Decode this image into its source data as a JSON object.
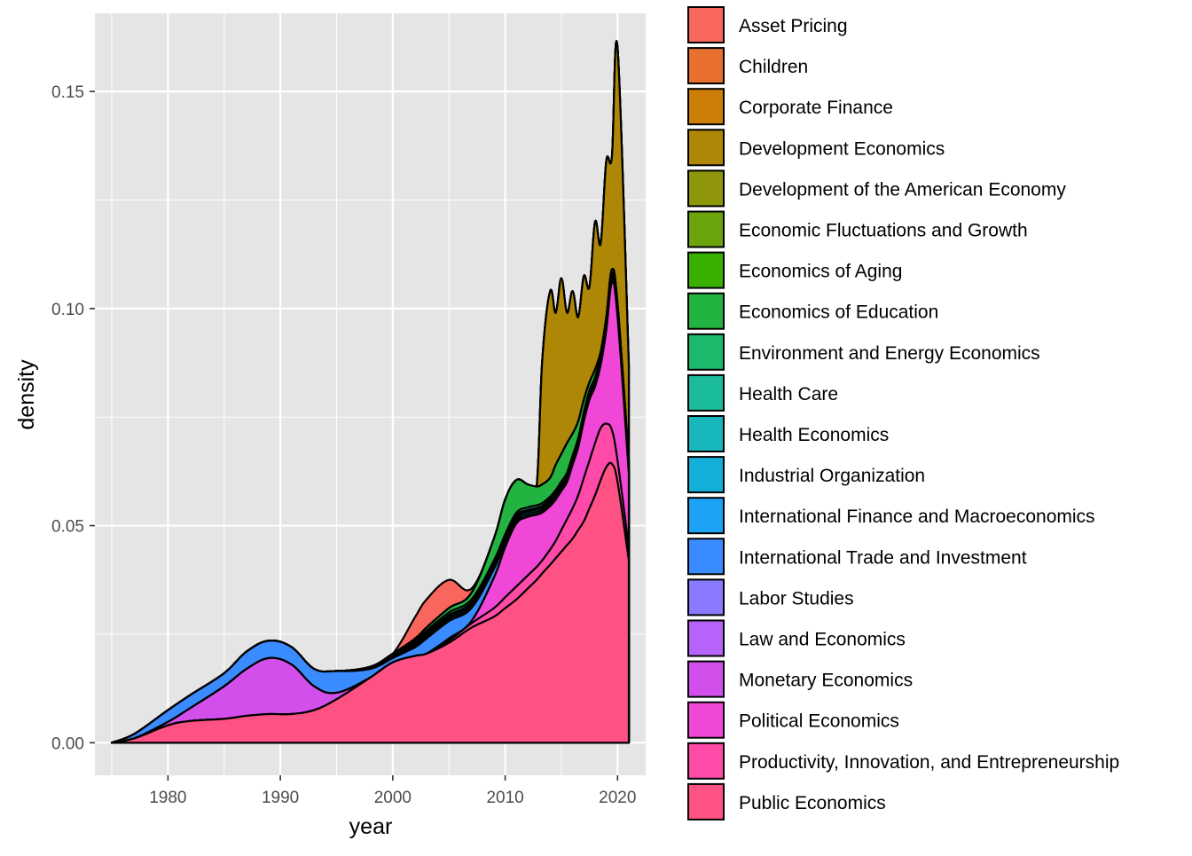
{
  "chart_data": {
    "type": "area",
    "stacked": true,
    "xlabel": "year",
    "ylabel": "density",
    "xlim": [
      1973.5,
      2022.5
    ],
    "ylim": [
      -0.0075,
      0.168
    ],
    "x_ticks": [
      1980,
      1990,
      2000,
      2010,
      2020
    ],
    "y_ticks": [
      0.0,
      0.05,
      0.1,
      0.15
    ],
    "x_tick_labels": [
      "1980",
      "1990",
      "2000",
      "2010",
      "2020"
    ],
    "y_tick_labels": [
      "0.00",
      "0.05",
      "0.10",
      "0.15"
    ],
    "grid": true,
    "legend_position": "right",
    "x": [
      1975,
      1977,
      1980,
      1982,
      1985,
      1987,
      1989,
      1991,
      1993,
      1995,
      1998,
      2000,
      2002,
      2003,
      2005,
      2007,
      2009,
      2010,
      2011,
      2012,
      2012.8,
      2013.3,
      2014,
      2014.5,
      2015,
      2015.5,
      2016,
      2016.5,
      2017,
      2017.5,
      2018,
      2018.5,
      2019,
      2019.5,
      2020,
      2021
    ],
    "series": [
      {
        "name": "Public Economics",
        "color": "#FF5284",
        "top": [
          0.0,
          0.001,
          0.004,
          0.005,
          0.0055,
          0.0062,
          0.0066,
          0.0066,
          0.0075,
          0.01,
          0.015,
          0.0185,
          0.02,
          0.0205,
          0.023,
          0.0265,
          0.029,
          0.031,
          0.033,
          0.0355,
          0.0375,
          0.039,
          0.041,
          0.0425,
          0.044,
          0.0455,
          0.047,
          0.049,
          0.051,
          0.054,
          0.057,
          0.0605,
          0.0635,
          0.0642,
          0.06,
          0.042
        ]
      },
      {
        "name": "Productivity, Innovation, and Entrepreneurship",
        "color": "#FF4AA8",
        "top": [
          0.0,
          0.001,
          0.004,
          0.005,
          0.0055,
          0.0062,
          0.0066,
          0.0066,
          0.0075,
          0.01,
          0.015,
          0.0185,
          0.02,
          0.0205,
          0.0235,
          0.0275,
          0.031,
          0.0335,
          0.036,
          0.0385,
          0.0405,
          0.042,
          0.0445,
          0.0465,
          0.049,
          0.0515,
          0.054,
          0.057,
          0.061,
          0.065,
          0.069,
          0.0725,
          0.0735,
          0.072,
          0.065,
          0.045
        ]
      },
      {
        "name": "Political Economics",
        "color": "#F147D7",
        "top": [
          0.0,
          0.001,
          0.004,
          0.005,
          0.0055,
          0.0062,
          0.0066,
          0.0066,
          0.0075,
          0.01,
          0.015,
          0.0185,
          0.02,
          0.0205,
          0.024,
          0.028,
          0.038,
          0.045,
          0.0505,
          0.052,
          0.0525,
          0.053,
          0.0545,
          0.056,
          0.058,
          0.06,
          0.064,
          0.068,
          0.074,
          0.079,
          0.082,
          0.087,
          0.095,
          0.106,
          0.098,
          0.062
        ]
      },
      {
        "name": "Monetary Economics",
        "color": "#D34FEC",
        "top": [
          0.0,
          0.001,
          0.0048,
          0.008,
          0.013,
          0.017,
          0.0195,
          0.018,
          0.013,
          0.0115,
          0.015,
          0.0185,
          0.02,
          0.0205,
          0.024,
          0.028,
          0.038,
          0.045,
          0.0505,
          0.052,
          0.0525,
          0.053,
          0.0545,
          0.056,
          0.058,
          0.06,
          0.064,
          0.068,
          0.074,
          0.079,
          0.082,
          0.087,
          0.095,
          0.106,
          0.098,
          0.062
        ]
      },
      {
        "name": "Law and Economics",
        "color": "#B664F9",
        "top": [
          0.0,
          0.001,
          0.0048,
          0.008,
          0.013,
          0.017,
          0.0195,
          0.018,
          0.013,
          0.0115,
          0.015,
          0.0185,
          0.02,
          0.0205,
          0.024,
          0.028,
          0.038,
          0.045,
          0.0505,
          0.052,
          0.0525,
          0.053,
          0.0545,
          0.056,
          0.058,
          0.06,
          0.064,
          0.068,
          0.074,
          0.079,
          0.082,
          0.087,
          0.095,
          0.106,
          0.098,
          0.062
        ]
      },
      {
        "name": "Labor Studies",
        "color": "#8A7AFF",
        "top": [
          0.0,
          0.001,
          0.0048,
          0.008,
          0.013,
          0.017,
          0.0195,
          0.018,
          0.013,
          0.0115,
          0.015,
          0.0185,
          0.02,
          0.0205,
          0.024,
          0.028,
          0.038,
          0.045,
          0.0505,
          0.052,
          0.0525,
          0.053,
          0.0545,
          0.056,
          0.058,
          0.06,
          0.064,
          0.068,
          0.074,
          0.079,
          0.082,
          0.087,
          0.095,
          0.106,
          0.098,
          0.062
        ]
      },
      {
        "name": "International Trade and Investment",
        "color": "#3A8BFF",
        "top": [
          0.0,
          0.002,
          0.0075,
          0.011,
          0.016,
          0.021,
          0.0235,
          0.022,
          0.017,
          0.0165,
          0.017,
          0.0195,
          0.022,
          0.024,
          0.028,
          0.031,
          0.04,
          0.046,
          0.051,
          0.0522,
          0.0527,
          0.0532,
          0.0547,
          0.0562,
          0.0582,
          0.0602,
          0.0642,
          0.0682,
          0.0742,
          0.0792,
          0.0822,
          0.0872,
          0.0952,
          0.1062,
          0.0982,
          0.0622
        ]
      },
      {
        "name": "International Finance and Macroeconomics",
        "color": "#1CA2F5",
        "top": [
          0.0,
          0.002,
          0.0075,
          0.011,
          0.016,
          0.021,
          0.0235,
          0.022,
          0.017,
          0.0165,
          0.017,
          0.0195,
          0.0225,
          0.0245,
          0.0285,
          0.0315,
          0.0405,
          0.0465,
          0.0515,
          0.0527,
          0.0532,
          0.0537,
          0.0552,
          0.0567,
          0.0587,
          0.0607,
          0.0647,
          0.0687,
          0.0747,
          0.0797,
          0.0827,
          0.0877,
          0.0957,
          0.1067,
          0.0987,
          0.0627
        ]
      },
      {
        "name": "Industrial Organization",
        "color": "#14AFD8",
        "top": [
          0.0,
          0.002,
          0.0075,
          0.011,
          0.016,
          0.021,
          0.0235,
          0.022,
          0.017,
          0.0165,
          0.017,
          0.0195,
          0.0228,
          0.025,
          0.029,
          0.032,
          0.041,
          0.047,
          0.052,
          0.0532,
          0.0537,
          0.0542,
          0.0557,
          0.0572,
          0.0592,
          0.0612,
          0.0652,
          0.0692,
          0.0752,
          0.0802,
          0.0832,
          0.0882,
          0.0962,
          0.1072,
          0.0992,
          0.0632
        ]
      },
      {
        "name": "Health Economics",
        "color": "#17B7BB",
        "top": [
          0.0,
          0.002,
          0.0075,
          0.011,
          0.016,
          0.021,
          0.0235,
          0.022,
          0.017,
          0.0165,
          0.017,
          0.0195,
          0.0228,
          0.025,
          0.029,
          0.032,
          0.041,
          0.047,
          0.052,
          0.0532,
          0.0537,
          0.0542,
          0.0557,
          0.0572,
          0.0592,
          0.0612,
          0.0652,
          0.0692,
          0.0752,
          0.0802,
          0.0832,
          0.0882,
          0.0962,
          0.1072,
          0.0992,
          0.0632
        ]
      },
      {
        "name": "Health Care",
        "color": "#1ABC9C",
        "top": [
          0.0,
          0.002,
          0.0075,
          0.011,
          0.016,
          0.021,
          0.0235,
          0.022,
          0.017,
          0.0165,
          0.017,
          0.0198,
          0.023,
          0.0253,
          0.0294,
          0.0324,
          0.0414,
          0.0474,
          0.0524,
          0.0536,
          0.0541,
          0.0546,
          0.0561,
          0.0576,
          0.0596,
          0.0616,
          0.0656,
          0.0696,
          0.0756,
          0.0806,
          0.0836,
          0.0886,
          0.0966,
          0.1076,
          0.0996,
          0.0636
        ]
      },
      {
        "name": "Environment and Energy Economics",
        "color": "#1AB96C",
        "top": [
          0.0,
          0.002,
          0.0075,
          0.011,
          0.016,
          0.021,
          0.0235,
          0.022,
          0.017,
          0.0165,
          0.0172,
          0.02,
          0.0235,
          0.0258,
          0.03,
          0.033,
          0.042,
          0.048,
          0.053,
          0.0542,
          0.0547,
          0.0552,
          0.0567,
          0.0582,
          0.0602,
          0.0622,
          0.0662,
          0.0702,
          0.0762,
          0.0812,
          0.0842,
          0.0892,
          0.0972,
          0.1082,
          0.1002,
          0.0642
        ]
      },
      {
        "name": "Economics of Education",
        "color": "#23B340",
        "top": [
          0.0,
          0.002,
          0.0075,
          0.011,
          0.016,
          0.021,
          0.0235,
          0.022,
          0.017,
          0.0165,
          0.0175,
          0.0205,
          0.024,
          0.0265,
          0.031,
          0.0345,
          0.047,
          0.056,
          0.0605,
          0.0595,
          0.059,
          0.0595,
          0.061,
          0.064,
          0.0665,
          0.069,
          0.0712,
          0.074,
          0.079,
          0.083,
          0.086,
          0.09,
          0.098,
          0.109,
          0.101,
          0.065
        ]
      },
      {
        "name": "Economics of Aging",
        "color": "#39B000",
        "top": [
          0.0,
          0.002,
          0.0075,
          0.011,
          0.016,
          0.021,
          0.0235,
          0.022,
          0.017,
          0.0165,
          0.0175,
          0.0205,
          0.024,
          0.0265,
          0.031,
          0.0345,
          0.047,
          0.056,
          0.0605,
          0.0595,
          0.059,
          0.0595,
          0.061,
          0.064,
          0.0665,
          0.069,
          0.0712,
          0.074,
          0.079,
          0.083,
          0.086,
          0.09,
          0.098,
          0.109,
          0.101,
          0.065
        ]
      },
      {
        "name": "Economic Fluctuations and Growth",
        "color": "#6CA40E",
        "top": [
          0.0,
          0.002,
          0.0075,
          0.011,
          0.016,
          0.021,
          0.0235,
          0.022,
          0.017,
          0.0165,
          0.0175,
          0.0205,
          0.024,
          0.0265,
          0.031,
          0.0345,
          0.047,
          0.056,
          0.0605,
          0.0595,
          0.059,
          0.0595,
          0.061,
          0.064,
          0.0665,
          0.069,
          0.0712,
          0.074,
          0.079,
          0.083,
          0.086,
          0.09,
          0.098,
          0.109,
          0.101,
          0.065
        ]
      },
      {
        "name": "Development of the American Economy",
        "color": "#8F960A",
        "top": [
          0.0,
          0.002,
          0.0075,
          0.011,
          0.016,
          0.021,
          0.0235,
          0.022,
          0.017,
          0.0165,
          0.0175,
          0.0205,
          0.024,
          0.0265,
          0.031,
          0.0345,
          0.047,
          0.056,
          0.0605,
          0.0595,
          0.059,
          0.0595,
          0.061,
          0.064,
          0.0665,
          0.069,
          0.0712,
          0.074,
          0.079,
          0.083,
          0.086,
          0.09,
          0.098,
          0.109,
          0.101,
          0.065
        ]
      },
      {
        "name": "Development Economics",
        "color": "#AF8706",
        "top": [
          0.0,
          0.002,
          0.0075,
          0.011,
          0.016,
          0.021,
          0.0235,
          0.022,
          0.017,
          0.0165,
          0.0175,
          0.0205,
          0.024,
          0.0265,
          0.031,
          0.0345,
          0.047,
          0.056,
          0.0605,
          0.0595,
          0.059,
          0.088,
          0.104,
          0.099,
          0.107,
          0.099,
          0.104,
          0.098,
          0.1075,
          0.105,
          0.12,
          0.115,
          0.134,
          0.135,
          0.16,
          0.087
        ]
      },
      {
        "name": "Corporate Finance",
        "color": "#CD7E08",
        "top": [
          0.0,
          0.002,
          0.0075,
          0.011,
          0.016,
          0.021,
          0.0235,
          0.022,
          0.017,
          0.0165,
          0.0175,
          0.0205,
          0.024,
          0.0265,
          0.031,
          0.0345,
          0.047,
          0.056,
          0.0605,
          0.0595,
          0.059,
          0.088,
          0.104,
          0.099,
          0.107,
          0.099,
          0.104,
          0.098,
          0.1075,
          0.105,
          0.12,
          0.115,
          0.134,
          0.135,
          0.16,
          0.087
        ]
      },
      {
        "name": "Children",
        "color": "#E7702E",
        "top": [
          0.0,
          0.002,
          0.0075,
          0.011,
          0.016,
          0.021,
          0.0235,
          0.022,
          0.017,
          0.0165,
          0.0175,
          0.0205,
          0.024,
          0.0265,
          0.031,
          0.0345,
          0.047,
          0.056,
          0.0605,
          0.0595,
          0.059,
          0.088,
          0.104,
          0.099,
          0.107,
          0.099,
          0.104,
          0.098,
          0.1075,
          0.105,
          0.12,
          0.115,
          0.134,
          0.135,
          0.16,
          0.087
        ]
      },
      {
        "name": "Asset Pricing",
        "color": "#F8665D",
        "top": [
          0.0,
          0.002,
          0.0075,
          0.011,
          0.016,
          0.021,
          0.0235,
          0.022,
          0.017,
          0.0165,
          0.0175,
          0.0205,
          0.029,
          0.033,
          0.0375,
          0.0355,
          0.047,
          0.056,
          0.0605,
          0.0595,
          0.059,
          0.088,
          0.104,
          0.099,
          0.107,
          0.099,
          0.104,
          0.098,
          0.1075,
          0.105,
          0.12,
          0.115,
          0.134,
          0.135,
          0.16,
          0.087
        ]
      }
    ],
    "legend_order": [
      "Asset Pricing",
      "Children",
      "Corporate Finance",
      "Development Economics",
      "Development of the American Economy",
      "Economic Fluctuations and Growth",
      "Economics of Aging",
      "Economics of Education",
      "Environment and Energy Economics",
      "Health Care",
      "Health Economics",
      "Industrial Organization",
      "International Finance and Macroeconomics",
      "International Trade and Investment",
      "Labor Studies",
      "Law and Economics",
      "Monetary Economics",
      "Political Economics",
      "Productivity, Innovation, and Entrepreneurship",
      "Public Economics"
    ],
    "colors": {
      "panel_background": "#E5E5E5",
      "grid": "#FFFFFF",
      "outline": "#000000"
    }
  }
}
